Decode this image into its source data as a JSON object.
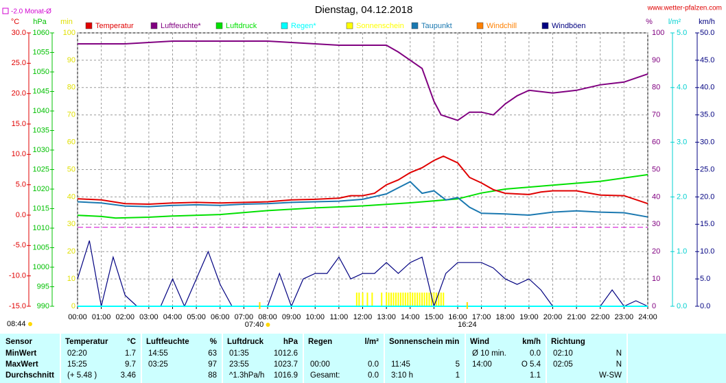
{
  "chart_data": {
    "type": "line",
    "title": "Dienstag, 04.12.2018",
    "source": "www.wetter-pfalzen.com",
    "time": "08:44",
    "monthly_mean": {
      "label": "-2.0 Monat-Ø",
      "value": -2,
      "color": "#d000d0",
      "axis": "temp"
    },
    "sunrise": {
      "label": "07:40",
      "x": 7.667
    },
    "sunset": {
      "label": "16:24",
      "x": 16.4
    },
    "grid": true,
    "xlim": [
      0,
      24
    ],
    "xticks": [
      {
        "value": 0,
        "label": "00:00"
      },
      {
        "value": 1,
        "label": "01:00"
      },
      {
        "value": 2,
        "label": "02:00"
      },
      {
        "value": 3,
        "label": "03:00"
      },
      {
        "value": 4,
        "label": "04:00"
      },
      {
        "value": 5,
        "label": "05:00"
      },
      {
        "value": 6,
        "label": "06:00"
      },
      {
        "value": 7,
        "label": "07:00"
      },
      {
        "value": 8,
        "label": "08:00"
      },
      {
        "value": 9,
        "label": "09:00"
      },
      {
        "value": 10,
        "label": "10:00"
      },
      {
        "value": 11,
        "label": "11:00"
      },
      {
        "value": 12,
        "label": "12:00"
      },
      {
        "value": 13,
        "label": "13:00"
      },
      {
        "value": 14,
        "label": "14:00"
      },
      {
        "value": 15,
        "label": "15:00"
      },
      {
        "value": 16,
        "label": "16:00"
      },
      {
        "value": 17,
        "label": "17:00"
      },
      {
        "value": 18,
        "label": "18:00"
      },
      {
        "value": 19,
        "label": "19:00"
      },
      {
        "value": 20,
        "label": "20:00"
      },
      {
        "value": 21,
        "label": "21:00"
      },
      {
        "value": 22,
        "label": "22:00"
      },
      {
        "value": 23,
        "label": "23:00"
      },
      {
        "value": 24,
        "label": "24:00"
      }
    ],
    "axes": {
      "temp": {
        "unit": "°C",
        "color": "#e00000",
        "lim": [
          -15,
          30
        ],
        "ticks": [
          {
            "value": -15,
            "label": "-15.0"
          },
          {
            "value": -10,
            "label": "-10.0"
          },
          {
            "value": -5,
            "label": "-5.0"
          },
          {
            "value": 0,
            "label": "0.0"
          },
          {
            "value": 5,
            "label": "5.0"
          },
          {
            "value": 10,
            "label": "10.0"
          },
          {
            "value": 15,
            "label": "15.0"
          },
          {
            "value": 20,
            "label": "20.0"
          },
          {
            "value": 25,
            "label": "25.0"
          },
          {
            "value": 30,
            "label": "30.0"
          }
        ]
      },
      "hpa": {
        "unit": "hPa",
        "color": "#00c000",
        "lim": [
          990,
          1060
        ],
        "ticks": [
          990,
          995,
          1000,
          1005,
          1010,
          1015,
          1020,
          1025,
          1030,
          1035,
          1040,
          1045,
          1050,
          1055,
          1060
        ]
      },
      "min": {
        "unit": "min",
        "color": "#e0e000",
        "lim": [
          0,
          100
        ],
        "ticks": [
          0,
          10,
          20,
          30,
          40,
          50,
          60,
          70,
          80,
          90,
          100
        ]
      },
      "pct": {
        "unit": "%",
        "color": "#800080",
        "lim": [
          0,
          100
        ],
        "ticks": [
          0,
          10,
          20,
          30,
          40,
          50,
          60,
          70,
          80,
          90,
          100
        ]
      },
      "rain": {
        "unit": "l/m²",
        "color": "#00d0d0",
        "lim": [
          0,
          5
        ],
        "ticks": [
          {
            "value": 0,
            "label": "0.0"
          },
          {
            "value": 1,
            "label": "1.0"
          },
          {
            "value": 2,
            "label": "2.0"
          },
          {
            "value": 3,
            "label": "3.0"
          },
          {
            "value": 4,
            "label": "4.0"
          },
          {
            "value": 5,
            "label": "5.0"
          }
        ]
      },
      "wind": {
        "unit": "km/h",
        "color": "#000080",
        "lim": [
          0,
          50
        ],
        "ticks": [
          {
            "value": 0,
            "label": "0.0"
          },
          {
            "value": 5,
            "label": "5.0"
          },
          {
            "value": 10,
            "label": "10.0"
          },
          {
            "value": 15,
            "label": "15.0"
          },
          {
            "value": 20,
            "label": "20.0"
          },
          {
            "value": 25,
            "label": "25.0"
          },
          {
            "value": 30,
            "label": "30.0"
          },
          {
            "value": 35,
            "label": "35.0"
          },
          {
            "value": 40,
            "label": "40.0"
          },
          {
            "value": 45,
            "label": "45.0"
          },
          {
            "value": 50,
            "label": "50.0"
          }
        ]
      }
    },
    "series": [
      {
        "name": "Temperatur",
        "color": "#e00000",
        "axis": "temp",
        "kind": "line",
        "x": [
          0,
          1,
          2,
          3,
          4,
          5,
          6,
          7,
          8,
          9,
          10,
          11,
          11.5,
          12,
          12.5,
          13,
          13.5,
          14,
          14.5,
          15,
          15.4,
          16,
          16.5,
          17,
          17.5,
          18,
          19,
          19.5,
          20,
          21,
          22,
          23,
          24
        ],
        "values": [
          2.7,
          2.5,
          1.9,
          1.8,
          2.0,
          2.1,
          2.0,
          2.1,
          2.2,
          2.5,
          2.6,
          2.8,
          3.2,
          3.2,
          3.6,
          5.0,
          5.8,
          7.0,
          7.8,
          9.0,
          9.7,
          8.6,
          6.2,
          5.3,
          4.2,
          3.6,
          3.4,
          3.8,
          4.0,
          4.0,
          3.3,
          3.2,
          1.9
        ]
      },
      {
        "name": "Luftfeuchte*",
        "color": "#800080",
        "axis": "pct",
        "kind": "line",
        "x": [
          0,
          2,
          4,
          6,
          8,
          10,
          11,
          12,
          13,
          13.5,
          14,
          14.5,
          15,
          15.3,
          16,
          16.5,
          17,
          17.5,
          18,
          18.5,
          19,
          20,
          21,
          21.5,
          22,
          23,
          24
        ],
        "values": [
          96,
          96,
          97,
          97,
          97,
          96,
          95.5,
          95.5,
          95.5,
          93,
          90,
          87,
          75,
          70,
          68,
          71,
          71,
          70,
          74,
          77,
          79,
          78,
          79,
          80,
          81,
          82,
          85
        ]
      },
      {
        "name": "Luftdruck",
        "color": "#00e000",
        "axis": "hpa",
        "kind": "line",
        "x": [
          0,
          1,
          1.6,
          3,
          4,
          6,
          8,
          10,
          12,
          14,
          16,
          17,
          18,
          20,
          22,
          24
        ],
        "values": [
          1013.3,
          1013.0,
          1012.6,
          1012.8,
          1013.1,
          1013.5,
          1014.5,
          1015.2,
          1015.7,
          1016.5,
          1017.5,
          1019.0,
          1020.0,
          1021.0,
          1022.0,
          1023.7
        ]
      },
      {
        "name": "Regen*",
        "color": "#00ffff",
        "axis": "rain",
        "kind": "line",
        "x": [
          0,
          24
        ],
        "values": [
          0,
          0
        ]
      },
      {
        "name": "Sonnenschein",
        "color": "#ffff00",
        "axis": "min",
        "kind": "bars",
        "x": [
          11.75,
          11.85,
          12.0,
          12.2,
          12.4,
          12.8,
          13.0,
          13.1,
          13.2,
          13.3,
          13.4,
          13.5,
          13.6,
          13.7,
          13.8,
          13.9,
          14.0,
          14.1,
          14.2,
          14.3,
          14.4,
          14.5,
          14.6,
          14.7,
          14.8,
          14.9,
          15.0,
          15.1,
          15.2,
          15.3,
          15.4
        ],
        "values": [
          5,
          5,
          5,
          5,
          5,
          5,
          5,
          5,
          5,
          5,
          5,
          5,
          5,
          5,
          5,
          5,
          5,
          5,
          5,
          5,
          5,
          5,
          5,
          5,
          5,
          5,
          5,
          5,
          5,
          5,
          5
        ]
      },
      {
        "name": "Taupunkt",
        "color": "#1a78b0",
        "axis": "temp",
        "kind": "line",
        "x": [
          0,
          1,
          2,
          3,
          4,
          5,
          6,
          7,
          8,
          9,
          10,
          11,
          12,
          13,
          13.5,
          14,
          14.5,
          15,
          15.5,
          16,
          16.5,
          17,
          18,
          19,
          20,
          21,
          22,
          23,
          24
        ],
        "values": [
          2.2,
          2.0,
          1.5,
          1.4,
          1.6,
          1.7,
          1.6,
          1.8,
          1.9,
          2.1,
          2.2,
          2.3,
          2.6,
          3.5,
          4.5,
          5.5,
          3.6,
          4.0,
          2.5,
          2.9,
          1.3,
          0.3,
          0.2,
          0.0,
          0.5,
          0.7,
          0.5,
          0.4,
          -0.3
        ]
      },
      {
        "name": "Windchill",
        "color": "#ff8000",
        "axis": "temp",
        "kind": "none"
      },
      {
        "name": "Windböen",
        "color": "#000080",
        "axis": "wind",
        "kind": "line",
        "x": [
          0,
          0.5,
          1,
          1.5,
          2,
          2.5,
          3,
          3.5,
          4,
          4.5,
          5,
          5.5,
          6,
          6.5,
          7,
          7.5,
          8,
          8.5,
          9,
          9.5,
          10,
          10.5,
          11,
          11.5,
          12,
          12.5,
          13,
          13.5,
          14,
          14.5,
          15,
          15.5,
          16,
          16.5,
          17,
          17.5,
          18,
          18.5,
          19,
          19.5,
          20,
          20.5,
          21,
          21.5,
          22,
          22.5,
          23,
          23.5,
          24
        ],
        "values": [
          5,
          12,
          0,
          9,
          2,
          0,
          0,
          0,
          5,
          0,
          5,
          10,
          4,
          0,
          0,
          0,
          0,
          6,
          0,
          5,
          6,
          6,
          9,
          5,
          6,
          6,
          8,
          6,
          8,
          9,
          0,
          6,
          8,
          8,
          8,
          7,
          5,
          4,
          5,
          3,
          0,
          0,
          0,
          0,
          0,
          3,
          0,
          1,
          0
        ]
      }
    ]
  },
  "table": {
    "header": "Sensor",
    "columns": [
      {
        "title": "Temperatur",
        "unit": "°C"
      },
      {
        "title": "Luftfeuchte",
        "unit": "%"
      },
      {
        "title": "Luftdruck",
        "unit": "hPa"
      },
      {
        "title": "Regen",
        "unit": "l/m²"
      },
      {
        "title": "Sonnenschein min"
      },
      {
        "title": "Wind",
        "unit": "km/h"
      },
      {
        "title": "Richtung"
      }
    ],
    "rows": [
      {
        "label": "MinWert",
        "cells": [
          {
            "l": "02:20",
            "r": "1.7"
          },
          {
            "l": "14:55",
            "r": "63"
          },
          {
            "l": "01:35",
            "r": "1012.6"
          },
          {},
          {},
          {
            "l": "Ø 10 min.",
            "r": "0.0"
          },
          {
            "l": "02:10",
            "r": "N"
          }
        ]
      },
      {
        "label": "MaxWert",
        "cells": [
          {
            "l": "15:25",
            "r": "9.7"
          },
          {
            "l": "03:25",
            "r": "97"
          },
          {
            "l": "23:55",
            "r": "1023.7"
          },
          {
            "l": "00:00",
            "r": "0.0"
          },
          {
            "l": "11:45",
            "r": "5"
          },
          {
            "l": "14:00",
            "r": "O 5.4"
          },
          {
            "l": "02:05",
            "r": "N"
          }
        ]
      },
      {
        "label": "Durchschnitt",
        "cells": [
          {
            "l": "(+ 5.48 )",
            "r": "3.46"
          },
          {
            "r": "88"
          },
          {
            "l": "^1.3hPa/h",
            "r": "1016.9"
          },
          {
            "l": "Gesamt:",
            "r": "0.0"
          },
          {
            "l": "3:10 h",
            "r": "1"
          },
          {
            "r": "1.1"
          },
          {
            "r": "W-SW"
          }
        ]
      }
    ]
  }
}
